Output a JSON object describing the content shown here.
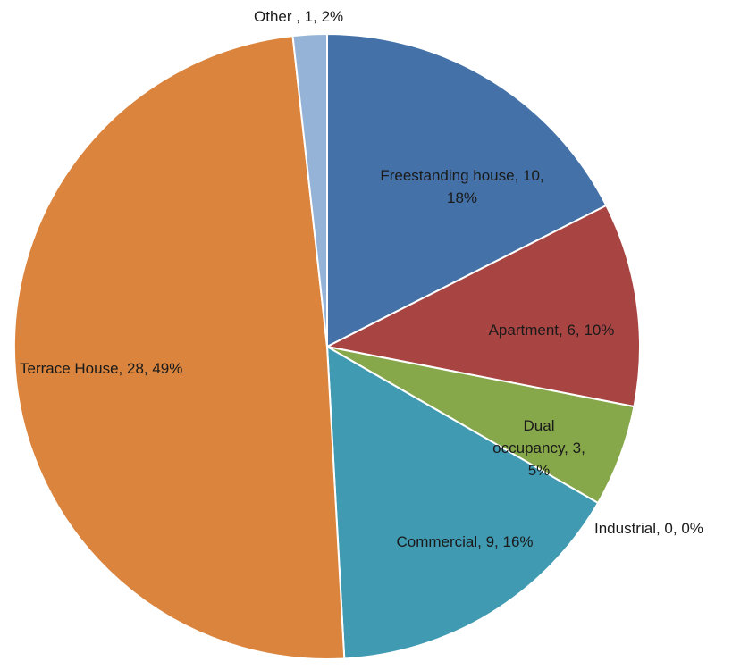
{
  "chart_data": {
    "type": "pie",
    "title": "",
    "start_angle_deg": 0,
    "direction": "clockwise",
    "legend": "none",
    "slices": [
      {
        "name": "Freestanding house",
        "value": 10,
        "percent": 18,
        "color": "#4472A8",
        "label_lines": [
          "Freestanding house, 10,",
          "18%"
        ]
      },
      {
        "name": "Apartment",
        "value": 6,
        "percent": 10,
        "color": "#A84442",
        "label_lines": [
          "Apartment, 6, 10%"
        ]
      },
      {
        "name": "Dual occupancy",
        "value": 3,
        "percent": 5,
        "color": "#87A84A",
        "label_lines": [
          "Dual",
          "occupancy, 3,",
          "5%"
        ]
      },
      {
        "name": "Industrial",
        "value": 0,
        "percent": 0,
        "color": "#7A5FA0",
        "label_lines": [
          "Industrial, 0, 0%"
        ]
      },
      {
        "name": "Commercial",
        "value": 9,
        "percent": 16,
        "color": "#3F9AB2",
        "label_lines": [
          "Commercial, 9, 16%"
        ]
      },
      {
        "name": "Terrace House",
        "value": 28,
        "percent": 49,
        "color": "#DB843D",
        "label_lines": [
          "Terrace House, 28, 49%"
        ]
      },
      {
        "name": "Other",
        "value": 1,
        "percent": 2,
        "color": "#95B3D7",
        "label_lines": [
          "Other , 1, 2%"
        ]
      }
    ]
  }
}
